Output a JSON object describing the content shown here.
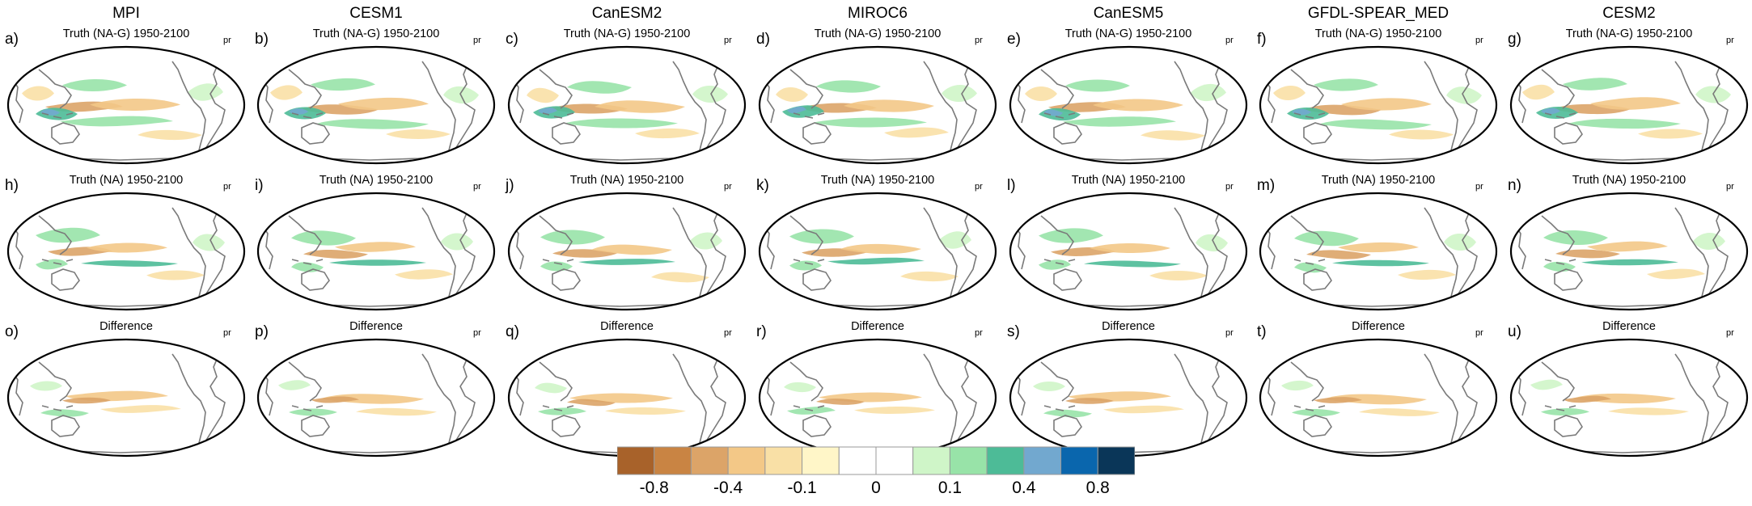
{
  "models": [
    "MPI",
    "CESM1",
    "CanESM2",
    "MIROC6",
    "CanESM5",
    "GFDL-SPEAR_MED",
    "CESM2"
  ],
  "rows": [
    {
      "title": "Truth (NA-G) 1950-2100",
      "labels": [
        "a)",
        "b)",
        "c)",
        "d)",
        "e)",
        "f)",
        "g)"
      ]
    },
    {
      "title": "Truth (NA) 1950-2100",
      "labels": [
        "h)",
        "i)",
        "j)",
        "k)",
        "l)",
        "m)",
        "n)"
      ]
    },
    {
      "title": "Difference",
      "labels": [
        "o)",
        "p)",
        "q)",
        "r)",
        "s)",
        "t)",
        "u)"
      ]
    }
  ],
  "variable": "pr",
  "colorbar": {
    "colors": [
      "#a8622a",
      "#c98443",
      "#dca468",
      "#f3c887",
      "#f9e0a6",
      "#fff6c8",
      "#ffffff",
      "#ffffff",
      "#cff5c8",
      "#98e3a8",
      "#4dbb97",
      "#72a8cf",
      "#0a66ad",
      "#0a3658"
    ],
    "ticks": [
      "-0.8",
      "-0.4",
      "-0.1",
      "0",
      "0.1",
      "0.4",
      "0.8"
    ]
  }
}
